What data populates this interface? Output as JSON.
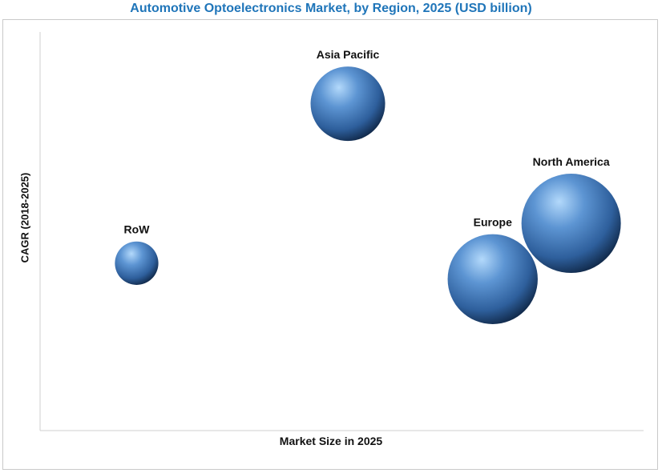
{
  "chart_data": {
    "type": "scatter",
    "title": "Automotive Optoelectronics Market, by Region, 2025 (USD billion)",
    "xlabel": "Market Size in 2025",
    "ylabel": "CAGR (2018-2025)",
    "grid": false,
    "xlim": [
      0,
      100
    ],
    "ylim": [
      0,
      100
    ],
    "series": [
      {
        "points": [
          {
            "label": "Asia Pacific",
            "x": 51,
            "y": 82,
            "size": 24
          },
          {
            "label": "North America",
            "x": 88,
            "y": 52,
            "size": 32
          },
          {
            "label": "Europe",
            "x": 75,
            "y": 38,
            "size": 29
          },
          {
            "label": "RoW",
            "x": 16,
            "y": 42,
            "size": 14
          }
        ]
      }
    ],
    "colors": {
      "bubble_light": "#a9d2f7",
      "bubble_mid": "#4f86c6",
      "bubble_dark": "#142f55",
      "title": "#1f75b9"
    }
  }
}
